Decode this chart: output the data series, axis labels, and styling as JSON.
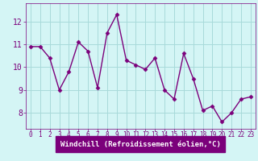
{
  "x": [
    0,
    1,
    2,
    3,
    4,
    5,
    6,
    7,
    8,
    9,
    10,
    11,
    12,
    13,
    14,
    15,
    16,
    17,
    18,
    19,
    20,
    21,
    22,
    23
  ],
  "y": [
    10.9,
    10.9,
    10.4,
    9.0,
    9.8,
    11.1,
    10.7,
    9.1,
    11.5,
    12.3,
    10.3,
    10.1,
    9.9,
    10.4,
    9.0,
    8.6,
    10.6,
    9.5,
    8.1,
    8.3,
    7.6,
    8.0,
    8.6,
    8.7
  ],
  "line_color": "#7b007b",
  "marker": "D",
  "marker_size": 2.5,
  "linewidth": 1.0,
  "bg_color": "#d4f5f5",
  "label_bg_color": "#7b007b",
  "grid_color": "#a8dada",
  "axis_label_color": "#ffffff",
  "tick_color": "#7b007b",
  "xlabel": "Windchill (Refroidissement éolien,°C)",
  "xlabel_fontsize": 6.5,
  "ytick_fontsize": 7,
  "xtick_fontsize": 5.5,
  "yticks": [
    8,
    9,
    10,
    11,
    12
  ],
  "xticks": [
    0,
    1,
    2,
    3,
    4,
    5,
    6,
    7,
    8,
    9,
    10,
    11,
    12,
    13,
    14,
    15,
    16,
    17,
    18,
    19,
    20,
    21,
    22,
    23
  ],
  "ylim": [
    7.3,
    12.8
  ],
  "xlim": [
    -0.5,
    23.5
  ]
}
